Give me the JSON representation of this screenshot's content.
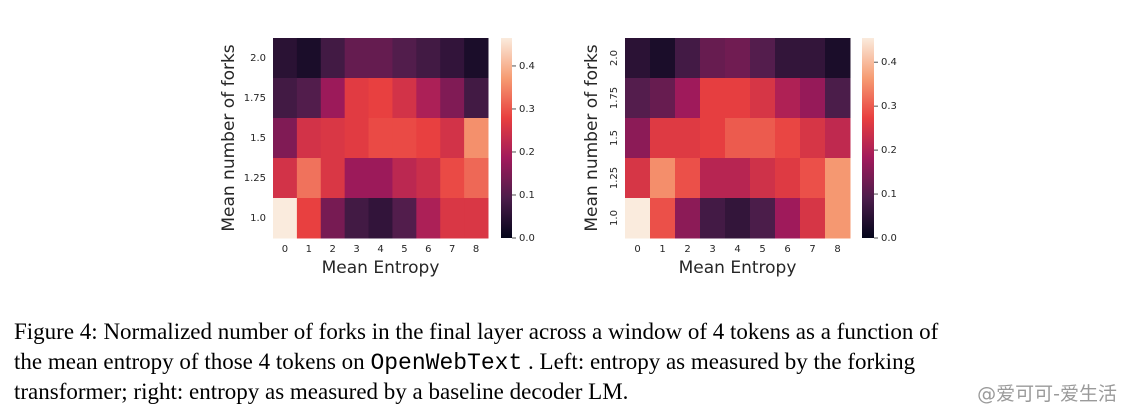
{
  "chart_data": [
    {
      "type": "heatmap",
      "x_label": "Mean Entropy",
      "y_label": "Mean number of forks",
      "x_categories": [
        "0",
        "1",
        "2",
        "3",
        "4",
        "5",
        "6",
        "7",
        "8"
      ],
      "y_categories": [
        "2.0",
        "1.75",
        "1.5",
        "1.25",
        "1.0"
      ],
      "values": [
        [
          0.05,
          0.03,
          0.08,
          0.12,
          0.12,
          0.1,
          0.08,
          0.06,
          0.03
        ],
        [
          0.08,
          0.1,
          0.18,
          0.27,
          0.28,
          0.25,
          0.2,
          0.15,
          0.08
        ],
        [
          0.15,
          0.25,
          0.26,
          0.27,
          0.29,
          0.29,
          0.28,
          0.25,
          0.36
        ],
        [
          0.25,
          0.33,
          0.26,
          0.18,
          0.18,
          0.22,
          0.24,
          0.29,
          0.32
        ],
        [
          0.47,
          0.28,
          0.14,
          0.08,
          0.06,
          0.1,
          0.2,
          0.26,
          0.26
        ]
      ],
      "zlim": [
        0,
        0.465
      ],
      "colorbar_ticks": [
        {
          "value": 0,
          "label": "0.0"
        },
        0.1,
        0.2,
        0.3,
        0.4
      ],
      "colormap": "rocket",
      "y_tick_rotation": 0
    },
    {
      "type": "heatmap",
      "x_label": "Mean Entropy",
      "y_label": "Mean number of forks",
      "x_categories": [
        "0",
        "1",
        "2",
        "3",
        "4",
        "5",
        "6",
        "7",
        "8"
      ],
      "y_categories": [
        "2.0",
        "1.75",
        "1.5",
        "1.25",
        "1.0"
      ],
      "values": [
        [
          0.05,
          0.03,
          0.08,
          0.12,
          0.13,
          0.1,
          0.06,
          0.06,
          0.03
        ],
        [
          0.1,
          0.12,
          0.18,
          0.27,
          0.27,
          0.25,
          0.2,
          0.17,
          0.09
        ],
        [
          0.16,
          0.26,
          0.26,
          0.27,
          0.3,
          0.3,
          0.28,
          0.25,
          0.22
        ],
        [
          0.25,
          0.35,
          0.29,
          0.21,
          0.21,
          0.24,
          0.26,
          0.29,
          0.36
        ],
        [
          0.48,
          0.29,
          0.16,
          0.08,
          0.06,
          0.09,
          0.18,
          0.25,
          0.36
        ]
      ],
      "zlim": [
        0,
        0.455
      ],
      "colorbar_ticks": [
        {
          "value": 0,
          "label": "0.0"
        },
        0.1,
        0.2,
        0.3,
        0.4
      ],
      "colormap": "rocket",
      "y_tick_rotation": -90
    }
  ],
  "caption_lines": [
    [
      "Figure 4: Normalized number of forks in the final layer across a window of ",
      "4",
      " tokens as a function of"
    ],
    [
      "the mean entropy of those ",
      "4",
      " tokens on ",
      "OpenWebText",
      " . Left: entropy as measured by the forking"
    ],
    [
      "transformer; right: entropy as measured by a baseline decoder LM."
    ]
  ],
  "watermark": "@爱可可-爱生活"
}
